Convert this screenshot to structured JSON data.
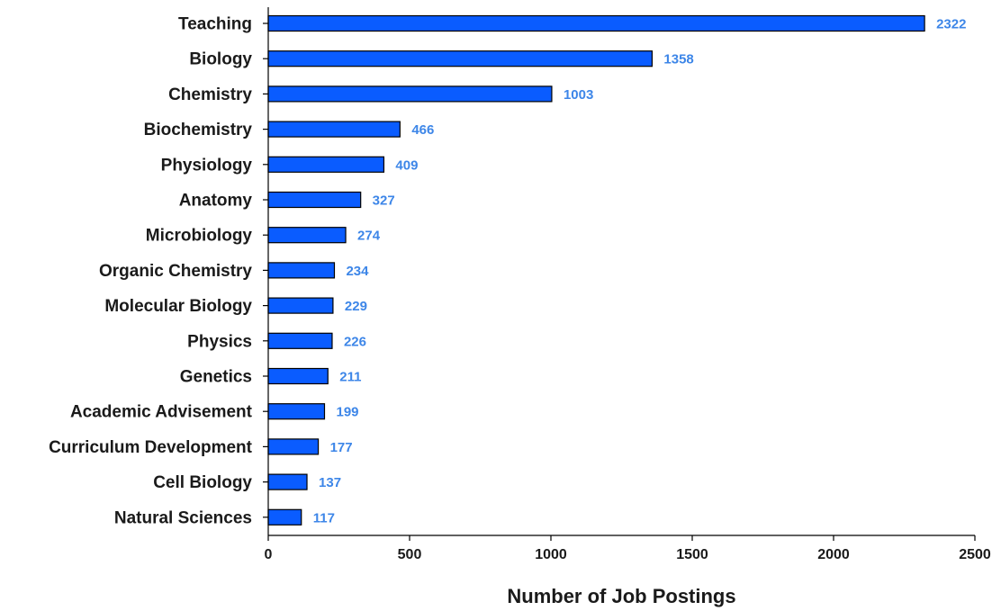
{
  "chart_data": {
    "type": "bar",
    "orientation": "horizontal",
    "categories": [
      "Teaching",
      "Biology",
      "Chemistry",
      "Biochemistry",
      "Physiology",
      "Anatomy",
      "Microbiology",
      "Organic Chemistry",
      "Molecular Biology",
      "Physics",
      "Genetics",
      "Academic Advisement",
      "Curriculum Development",
      "Cell Biology",
      "Natural Sciences"
    ],
    "values": [
      2322,
      1358,
      1003,
      466,
      409,
      327,
      274,
      234,
      229,
      226,
      211,
      199,
      177,
      137,
      117
    ],
    "value_labels": [
      "2322",
      "1358",
      "1003",
      "466",
      "409",
      "327",
      "274",
      "234",
      "229",
      "226",
      "211",
      "199",
      "177",
      "137",
      "117"
    ],
    "title": "",
    "xlabel": "Number of Job Postings",
    "ylabel": "",
    "xlim": [
      0,
      2500
    ],
    "xticks": [
      "0",
      "500",
      "1000",
      "1500",
      "2000",
      "2500"
    ],
    "grid": false,
    "legend": "none",
    "bar_color": "#0a5cff",
    "bar_border_color": "#000000",
    "value_label_color": "#3d86e8"
  }
}
